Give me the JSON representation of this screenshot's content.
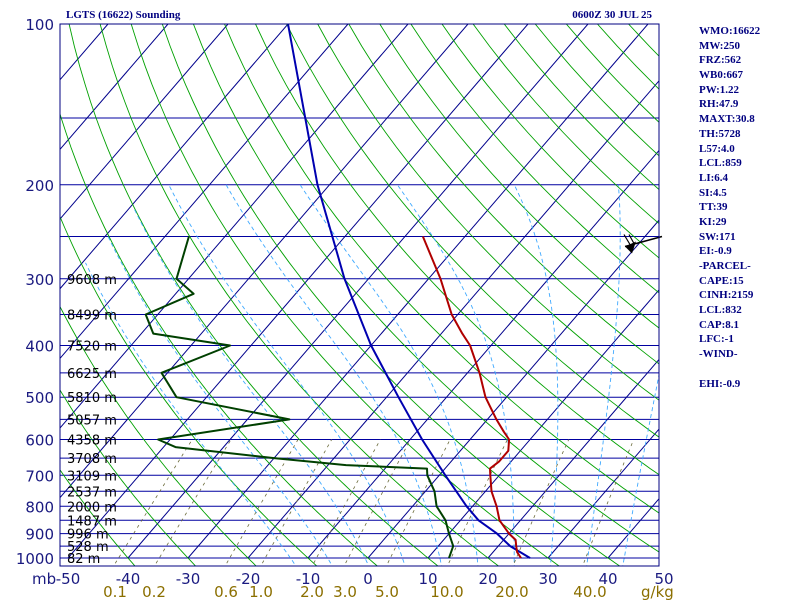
{
  "header": {
    "title": "LGTS (16622) Sounding",
    "datetime": "0600Z 30 JUL 25"
  },
  "indices": [
    "WMO:16622",
    "MW:250",
    "FRZ:562",
    "WB0:667",
    "PW:1.22",
    "RH:47.9",
    "MAXT:30.8",
    "TH:5728",
    "L57:4.0",
    "LCL:859",
    "LI:6.4",
    "SI:4.5",
    "TT:39",
    "KI:29",
    "SW:171",
    "EI:-0.9",
    "-PARCEL-",
    "CAPE:15",
    "CINH:2159",
    "LCL:832",
    "CAP:8.1",
    "LFC:-1",
    "-WIND-",
    "",
    "EHI:-0.9"
  ],
  "colors": {
    "frame": "#000080",
    "isobar": "#0000a0",
    "isotherm": "#00008b",
    "dry_adiabat": "#00a000",
    "moist_adiabat": "#3fa9ff",
    "mixing_ratio": "#6b6b3a",
    "temperature": "#b00000",
    "dewpoint": "#004000",
    "parcel": "#0000b0",
    "axis_text": "#1a1a80",
    "mixing_text": "#8b6f00"
  },
  "chart_data": {
    "type": "skew-t",
    "pressure_axis": {
      "unit": "mb",
      "range": [
        1000,
        100
      ],
      "scale": "log",
      "ticks": [
        100,
        200,
        300,
        400,
        500,
        600,
        700,
        800,
        900,
        1000
      ]
    },
    "temperature_axis": {
      "unit": "°C",
      "range": [
        -50,
        50
      ],
      "ticks": [
        "-50",
        "-40",
        "-30",
        "-20",
        "-10",
        "0",
        "10",
        "20",
        "30",
        "40",
        "50"
      ]
    },
    "mixing_ratio_axis": {
      "unit": "g/kg",
      "ticks": [
        "0.1",
        "0.2",
        "0.6",
        "1.0",
        "2.0",
        "3.0",
        "5.0",
        "10.0",
        "20.0",
        "40.0"
      ]
    },
    "height_labels": [
      {
        "p": 300,
        "label": "9608 m"
      },
      {
        "p": 350,
        "label": "8499 m"
      },
      {
        "p": 400,
        "label": "7520 m"
      },
      {
        "p": 450,
        "label": "6625 m"
      },
      {
        "p": 500,
        "label": "5810 m"
      },
      {
        "p": 550,
        "label": "5057 m"
      },
      {
        "p": 600,
        "label": "4358 m"
      },
      {
        "p": 650,
        "label": "3708 m"
      },
      {
        "p": 700,
        "label": "3109 m"
      },
      {
        "p": 750,
        "label": "2537 m"
      },
      {
        "p": 800,
        "label": "2000 m"
      },
      {
        "p": 850,
        "label": "1487 m"
      },
      {
        "p": 900,
        "label": "996 m"
      },
      {
        "p": 950,
        "label": "528 m"
      },
      {
        "p": 1000,
        "label": "82 m"
      }
    ],
    "temperature_profile": [
      [
        1000,
        25.5
      ],
      [
        975,
        24.0
      ],
      [
        950,
        23.0
      ],
      [
        925,
        22.0
      ],
      [
        900,
        20.0
      ],
      [
        850,
        16.5
      ],
      [
        800,
        14.0
      ],
      [
        750,
        11.0
      ],
      [
        700,
        8.5
      ],
      [
        680,
        7.5
      ],
      [
        660,
        8.0
      ],
      [
        630,
        8.0
      ],
      [
        600,
        6.5
      ],
      [
        580,
        4.5
      ],
      [
        550,
        1.5
      ],
      [
        500,
        -3.5
      ],
      [
        450,
        -8.0
      ],
      [
        400,
        -13.5
      ],
      [
        380,
        -16.5
      ],
      [
        350,
        -21.0
      ],
      [
        300,
        -28.0
      ],
      [
        250,
        -37.0
      ]
    ],
    "dewpoint_profile": [
      [
        1000,
        13.5
      ],
      [
        975,
        13.0
      ],
      [
        950,
        12.5
      ],
      [
        900,
        10.0
      ],
      [
        850,
        7.5
      ],
      [
        800,
        4.0
      ],
      [
        750,
        1.5
      ],
      [
        700,
        -2.0
      ],
      [
        680,
        -3.0
      ],
      [
        670,
        -17.0
      ],
      [
        650,
        -30.0
      ],
      [
        620,
        -48.0
      ],
      [
        600,
        -52.0
      ],
      [
        550,
        -33.0
      ],
      [
        500,
        -55.0
      ],
      [
        450,
        -61.0
      ],
      [
        400,
        -53.5
      ],
      [
        380,
        -68.0
      ],
      [
        350,
        -72.0
      ],
      [
        320,
        -67.0
      ],
      [
        300,
        -72.0
      ],
      [
        250,
        -76.0
      ]
    ],
    "parcel_profile": [
      [
        1000,
        27.0
      ],
      [
        950,
        22.0
      ],
      [
        900,
        18.0
      ],
      [
        850,
        13.0
      ],
      [
        800,
        9.0
      ],
      [
        700,
        1.0
      ],
      [
        600,
        -8.0
      ],
      [
        500,
        -18.0
      ],
      [
        400,
        -30.0
      ],
      [
        300,
        -44.0
      ],
      [
        200,
        -62.0
      ],
      [
        100,
        -90.0
      ]
    ],
    "wind_barb": {
      "p": 250,
      "direction_deg": 240,
      "speed_kt": 25
    }
  }
}
